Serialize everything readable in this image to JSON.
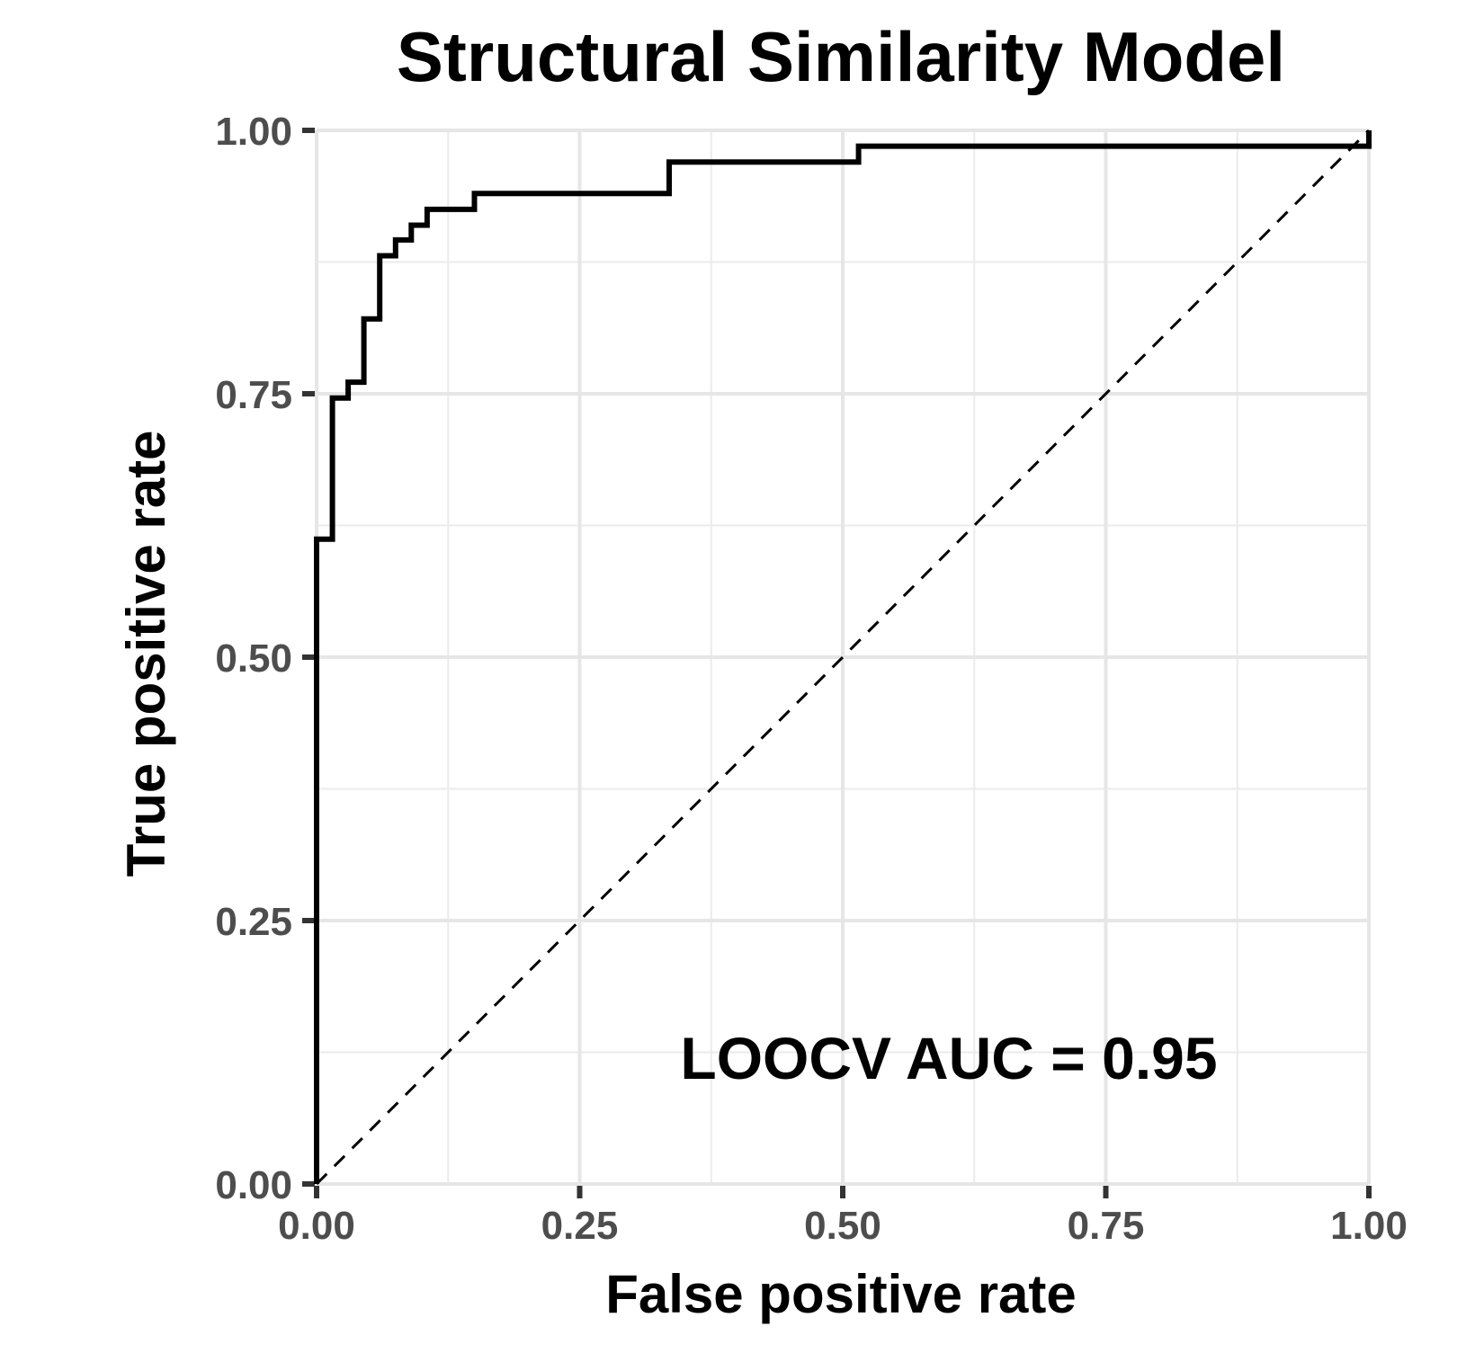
{
  "chart_data": {
    "type": "line",
    "title": "Structural Similarity Model",
    "xlabel": "False positive rate",
    "ylabel": "True positive rate",
    "xlim": [
      0,
      1
    ],
    "ylim": [
      0,
      1
    ],
    "x_ticks": [
      0,
      0.25,
      0.5,
      0.75,
      1
    ],
    "y_ticks": [
      0,
      0.25,
      0.5,
      0.75,
      1
    ],
    "x_tick_labels": [
      "0.00",
      "0.25",
      "0.50",
      "0.75",
      "1.00"
    ],
    "y_tick_labels": [
      "0.00",
      "0.25",
      "0.50",
      "0.75",
      "1.00"
    ],
    "grid": true,
    "annotation": "LOOCV AUC = 0.95",
    "series": [
      {
        "style": "solid",
        "color": "#000000",
        "x": [
          0,
          0,
          0.015,
          0.015,
          0.03,
          0.03,
          0.045,
          0.045,
          0.06,
          0.06,
          0.075,
          0.075,
          0.09,
          0.09,
          0.105,
          0.105,
          0.15,
          0.15,
          0.335,
          0.335,
          0.515,
          0.515,
          1,
          1
        ],
        "y": [
          0,
          0.612,
          0.612,
          0.746,
          0.746,
          0.761,
          0.761,
          0.821,
          0.821,
          0.881,
          0.881,
          0.896,
          0.896,
          0.91,
          0.91,
          0.925,
          0.925,
          0.94,
          0.94,
          0.97,
          0.97,
          0.985,
          0.985,
          1
        ]
      },
      {
        "style": "dashed",
        "color": "#000000",
        "x": [
          0,
          1
        ],
        "y": [
          0,
          1
        ]
      }
    ]
  }
}
